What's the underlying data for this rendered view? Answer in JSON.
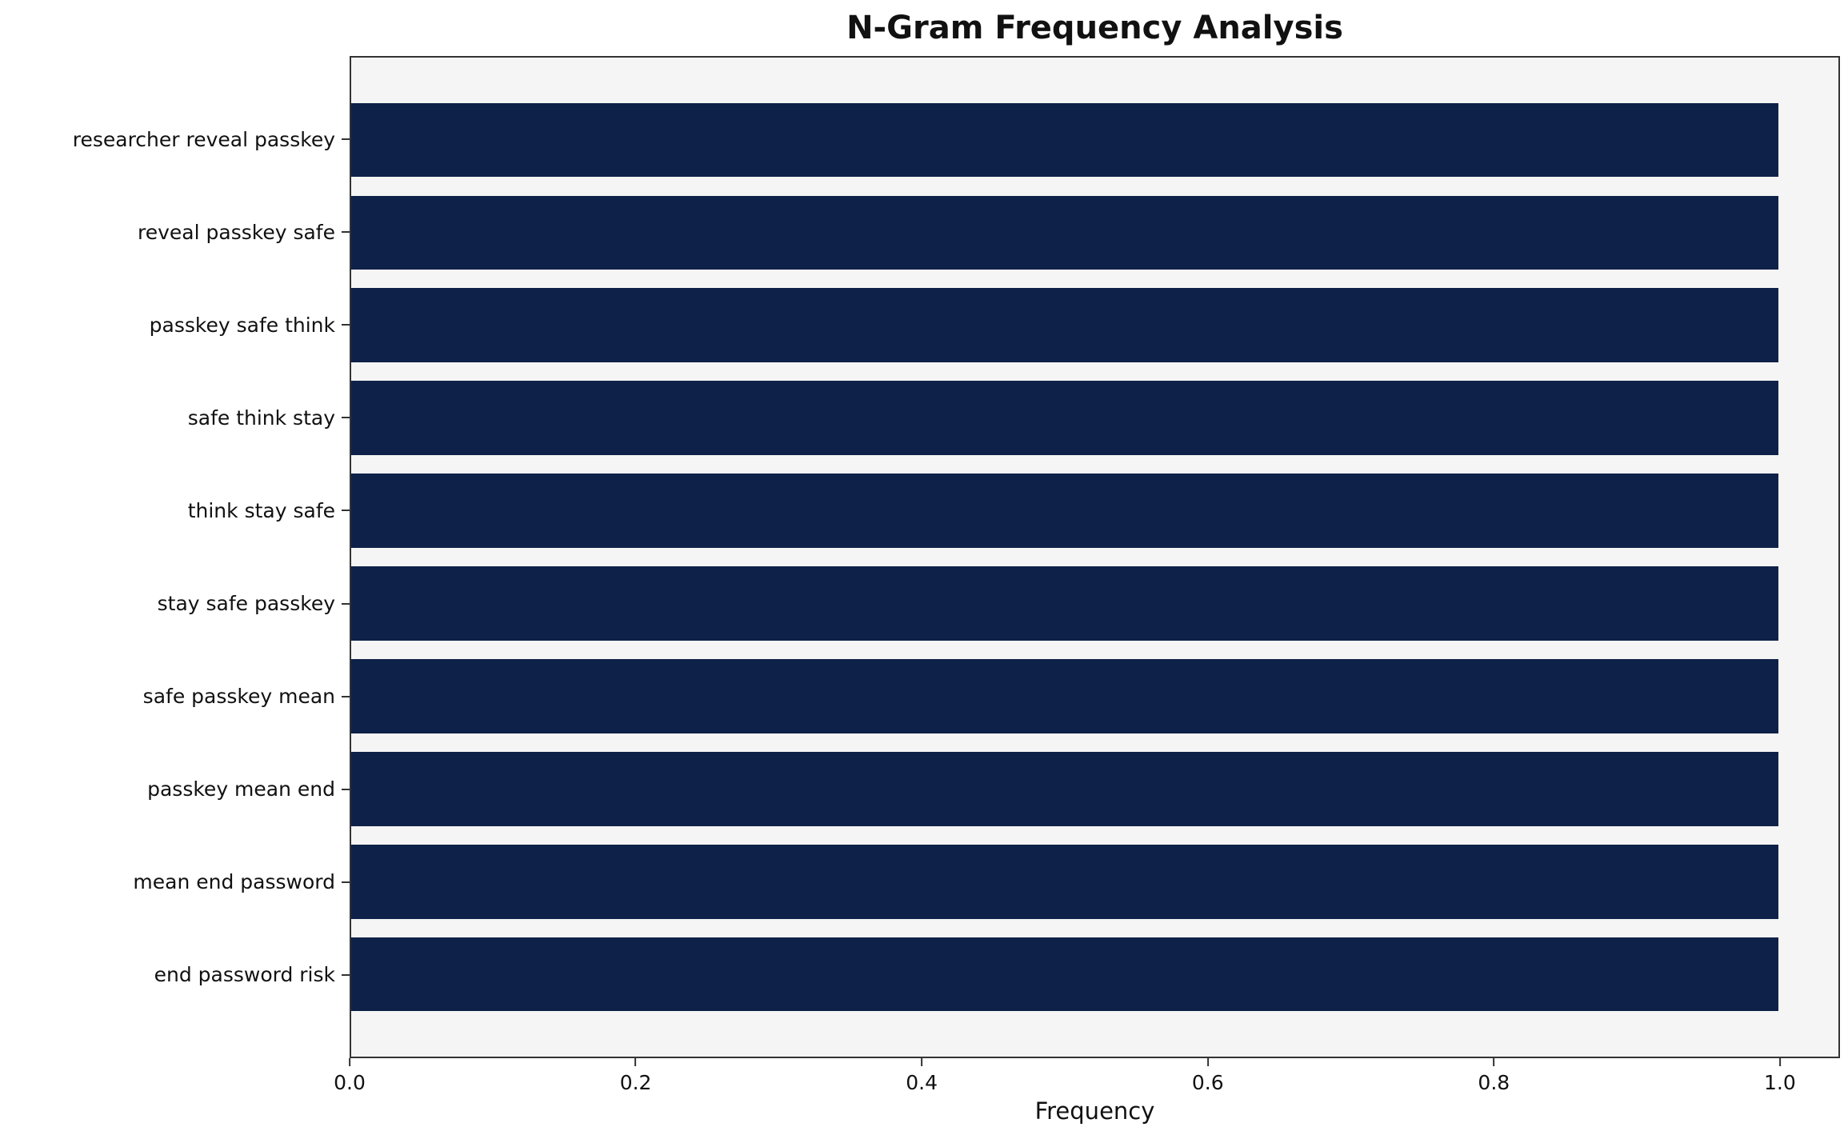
{
  "chart_data": {
    "type": "bar",
    "orientation": "horizontal",
    "title": "N-Gram Frequency Analysis",
    "categories": [
      "researcher reveal passkey",
      "reveal passkey safe",
      "passkey safe think",
      "safe think stay",
      "think stay safe",
      "stay safe passkey",
      "safe passkey mean",
      "passkey mean end",
      "mean end password",
      "end password risk"
    ],
    "values": [
      1.0,
      1.0,
      1.0,
      1.0,
      1.0,
      1.0,
      1.0,
      1.0,
      1.0,
      1.0
    ],
    "xlabel": "Frequency",
    "ylabel": "",
    "xlim": [
      0,
      1.042
    ],
    "xticks": [
      0.0,
      0.2,
      0.4,
      0.6,
      0.8,
      1.0
    ],
    "xtick_labels": [
      "0.0",
      "0.2",
      "0.4",
      "0.6",
      "0.8",
      "1.0"
    ],
    "grid": false,
    "legend": "none",
    "bar_thickness_fraction": 0.8,
    "colors": {
      "bar": "#0e2148",
      "plot_background": "#f5f5f5",
      "figure_background": "#ffffff",
      "text": "#111111",
      "spine": "#333333"
    }
  }
}
